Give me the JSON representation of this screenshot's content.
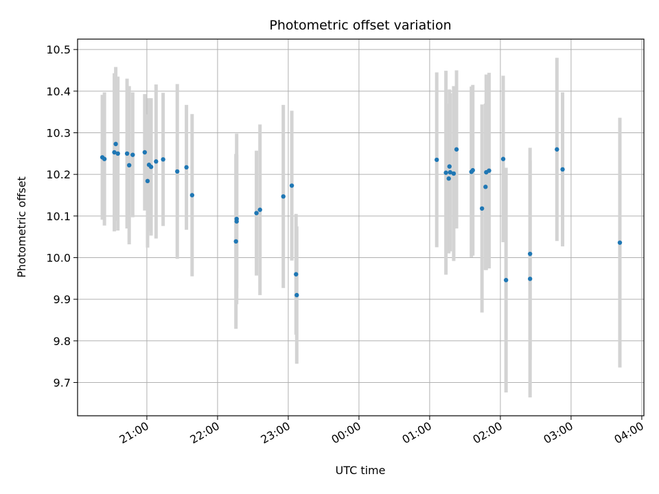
{
  "chart_data": {
    "type": "scatter",
    "title": "Photometric offset variation",
    "xlabel": "UTC time",
    "ylabel": "Photometric offset",
    "x_unit": "hours since 00:00 UTC (negative = previous evening)",
    "xlim": [
      -3.98,
      4.03
    ],
    "ylim": [
      9.62,
      10.525
    ],
    "grid": true,
    "x_ticks": [
      {
        "value": -3,
        "label": "21:00"
      },
      {
        "value": -2,
        "label": "22:00"
      },
      {
        "value": -1,
        "label": "23:00"
      },
      {
        "value": 0,
        "label": "00:00"
      },
      {
        "value": 1,
        "label": "01:00"
      },
      {
        "value": 2,
        "label": "02:00"
      },
      {
        "value": 3,
        "label": "03:00"
      },
      {
        "value": 4,
        "label": "04:00"
      }
    ],
    "y_ticks": [
      {
        "value": 9.7,
        "label": "9.7"
      },
      {
        "value": 9.8,
        "label": "9.8"
      },
      {
        "value": 9.9,
        "label": "9.9"
      },
      {
        "value": 10.0,
        "label": "10.0"
      },
      {
        "value": 10.1,
        "label": "10.1"
      },
      {
        "value": 10.2,
        "label": "10.2"
      },
      {
        "value": 10.3,
        "label": "10.3"
      },
      {
        "value": 10.4,
        "label": "10.4"
      },
      {
        "value": 10.5,
        "label": "10.5"
      }
    ],
    "series": [
      {
        "name": "photometric offset",
        "color": "#1f77b4",
        "errorbar_color": "#d3d3d3",
        "points": [
          {
            "x": -3.63,
            "y": 10.241,
            "err": 0.15
          },
          {
            "x": -3.6,
            "y": 10.237,
            "err": 0.16
          },
          {
            "x": -3.46,
            "y": 10.253,
            "err": 0.19
          },
          {
            "x": -3.44,
            "y": 10.273,
            "err": 0.185
          },
          {
            "x": -3.41,
            "y": 10.25,
            "err": 0.185
          },
          {
            "x": -3.28,
            "y": 10.25,
            "err": 0.18
          },
          {
            "x": -3.25,
            "y": 10.222,
            "err": 0.19
          },
          {
            "x": -3.2,
            "y": 10.247,
            "err": 0.15
          },
          {
            "x": -3.03,
            "y": 10.253,
            "err": 0.14
          },
          {
            "x": -2.99,
            "y": 10.184,
            "err": 0.16
          },
          {
            "x": -2.97,
            "y": 10.223,
            "err": 0.16
          },
          {
            "x": -2.94,
            "y": 10.218,
            "err": 0.165
          },
          {
            "x": -2.87,
            "y": 10.231,
            "err": 0.185
          },
          {
            "x": -2.77,
            "y": 10.236,
            "err": 0.16
          },
          {
            "x": -2.57,
            "y": 10.207,
            "err": 0.21
          },
          {
            "x": -2.44,
            "y": 10.217,
            "err": 0.15
          },
          {
            "x": -2.36,
            "y": 10.15,
            "err": 0.195
          },
          {
            "x": -1.74,
            "y": 10.039,
            "err": 0.21
          },
          {
            "x": -1.73,
            "y": 10.093,
            "err": 0.205
          },
          {
            "x": -1.73,
            "y": 10.087,
            "err": 0.16
          },
          {
            "x": -1.45,
            "y": 10.107,
            "err": 0.15
          },
          {
            "x": -1.4,
            "y": 10.115,
            "err": 0.205
          },
          {
            "x": -1.07,
            "y": 10.147,
            "err": 0.22
          },
          {
            "x": -0.95,
            "y": 10.173,
            "err": 0.18
          },
          {
            "x": -0.89,
            "y": 9.96,
            "err": 0.145
          },
          {
            "x": -0.88,
            "y": 9.91,
            "err": 0.165
          },
          {
            "x": 1.1,
            "y": 10.235,
            "err": 0.21
          },
          {
            "x": 1.23,
            "y": 10.204,
            "err": 0.245
          },
          {
            "x": 1.27,
            "y": 10.19,
            "err": 0.18
          },
          {
            "x": 1.28,
            "y": 10.219,
            "err": 0.185
          },
          {
            "x": 1.29,
            "y": 10.205,
            "err": 0.19
          },
          {
            "x": 1.34,
            "y": 10.202,
            "err": 0.21
          },
          {
            "x": 1.38,
            "y": 10.26,
            "err": 0.19
          },
          {
            "x": 1.59,
            "y": 10.206,
            "err": 0.205
          },
          {
            "x": 1.61,
            "y": 10.21,
            "err": 0.205
          },
          {
            "x": 1.74,
            "y": 10.118,
            "err": 0.25
          },
          {
            "x": 1.79,
            "y": 10.17,
            "err": 0.2
          },
          {
            "x": 1.8,
            "y": 10.205,
            "err": 0.235
          },
          {
            "x": 1.84,
            "y": 10.209,
            "err": 0.235
          },
          {
            "x": 2.04,
            "y": 10.237,
            "err": 0.2
          },
          {
            "x": 2.08,
            "y": 9.946,
            "err": 0.27
          },
          {
            "x": 2.42,
            "y": 10.009,
            "err": 0.255
          },
          {
            "x": 2.42,
            "y": 9.949,
            "err": 0.285
          },
          {
            "x": 2.8,
            "y": 10.26,
            "err": 0.22
          },
          {
            "x": 2.88,
            "y": 10.212,
            "err": 0.185
          },
          {
            "x": 3.69,
            "y": 10.036,
            "err": 0.3
          }
        ]
      }
    ]
  }
}
